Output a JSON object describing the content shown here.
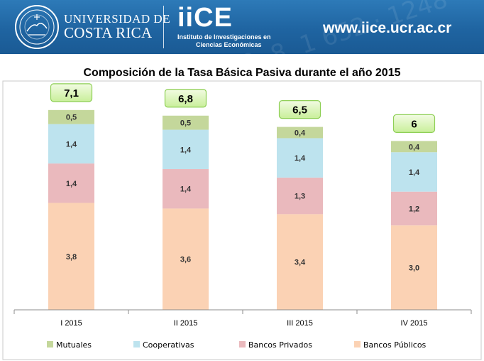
{
  "header": {
    "university_line1": "UNIVERSIDAD DE",
    "university_line2": "COSTA RICA",
    "iice_logo": "iiCE",
    "iice_sub_line1": "Instituto de Investigaciones en",
    "iice_sub_line2": "Ciencias Económicas",
    "url": "www.iice.ucr.ac.cr",
    "watermark": "0. 8. 1 652 · 1248 · 4 0 · 43",
    "colors": {
      "banner": "#1f64a1",
      "text": "#ffffff"
    }
  },
  "chart_data": {
    "type": "bar",
    "stacked": true,
    "title": "Composición de la Tasa Básica Pasiva durante el año 2015",
    "categories": [
      "I 2015",
      "II 2015",
      "III 2015",
      "IV 2015"
    ],
    "series": [
      {
        "name": "Bancos Públicos",
        "color": "#fbd2b4",
        "values": [
          3.8,
          3.6,
          3.4,
          3.0
        ],
        "labels": [
          "3,8",
          "3,6",
          "3,4",
          "3,0"
        ]
      },
      {
        "name": "Bancos Privados",
        "color": "#eab9bd",
        "values": [
          1.4,
          1.4,
          1.3,
          1.2
        ],
        "labels": [
          "1,4",
          "1,4",
          "1,3",
          "1,2"
        ]
      },
      {
        "name": "Cooperativas",
        "color": "#bde3ee",
        "values": [
          1.4,
          1.4,
          1.4,
          1.4
        ],
        "labels": [
          "1,4",
          "1,4",
          "1,4",
          "1,4"
        ]
      },
      {
        "name": "Mutuales",
        "color": "#c4d79b",
        "values": [
          0.5,
          0.5,
          0.4,
          0.4
        ],
        "labels": [
          "0,5",
          "0,5",
          "0,4",
          "0,4"
        ]
      }
    ],
    "totals": [
      7.1,
      6.8,
      6.5,
      6.0
    ],
    "total_labels": [
      "7,1",
      "6,8",
      "6,5",
      "6"
    ],
    "legend": {
      "position": "bottom",
      "order": [
        "Mutuales",
        "Cooperativas",
        "Bancos Privados",
        "Bancos Públicos"
      ]
    },
    "grid": false,
    "xlabel": "",
    "ylabel": ""
  }
}
